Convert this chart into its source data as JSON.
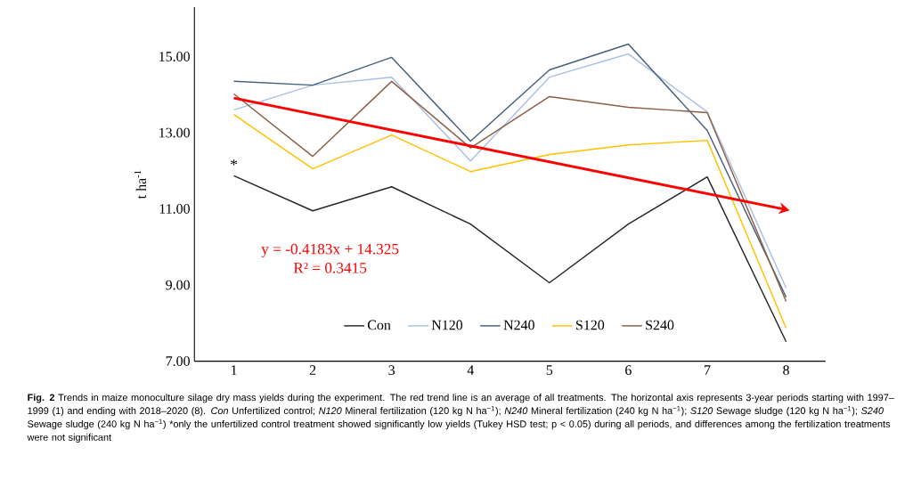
{
  "chart_data": {
    "type": "line",
    "x": [
      1,
      2,
      3,
      4,
      5,
      6,
      7,
      8
    ],
    "ylabel": "t ha$^{-1}$",
    "xlim": [
      0.5,
      8.5
    ],
    "xticks": [
      1,
      2,
      3,
      4,
      5,
      6,
      7,
      8
    ],
    "ylim": [
      7,
      16.3
    ],
    "yticks": [
      {
        "value": 7,
        "label": "7.00"
      },
      {
        "value": 9,
        "label": "9.00"
      },
      {
        "value": 11,
        "label": "11.00"
      },
      {
        "value": 13,
        "label": "13.00"
      },
      {
        "value": 15,
        "label": "15.00"
      }
    ],
    "series": [
      {
        "name": "Con",
        "color": "#262626",
        "values": [
          11.87,
          10.95,
          11.58,
          10.6,
          9.06,
          10.6,
          11.84,
          7.51
        ]
      },
      {
        "name": "N120",
        "color": "#a9c0e6",
        "values": [
          13.6,
          14.25,
          14.46,
          12.26,
          14.46,
          15.07,
          13.55,
          8.92
        ]
      },
      {
        "name": "N240",
        "color": "#44607f",
        "values": [
          14.35,
          14.25,
          14.98,
          12.78,
          14.65,
          15.33,
          13.06,
          8.68
        ]
      },
      {
        "name": "S120",
        "color": "#ffc000",
        "values": [
          13.48,
          12.05,
          12.94,
          11.98,
          12.43,
          12.68,
          12.8,
          7.87
        ]
      },
      {
        "name": "S240",
        "color": "#8c5f45",
        "values": [
          14.02,
          12.38,
          14.35,
          12.6,
          13.95,
          13.67,
          13.53,
          8.57
        ]
      },
      {
        "type": "line",
        "color": "#ff0000",
        "x": [
          1,
          8
        ],
        "values": [
          13.91,
          10.98
        ]
      }
    ],
    "annotations": [
      "*",
      "y = -0.4183x + 14.325",
      "R² = 0.3415",
      "**Fig. 2** Trends in maize monoculture silage dry mass yields during the experiment. The red trend line is an average of all treatments. The horizontal axis represents 3-year periods starting with 1997–1999 (1) and ending with 2018–2020 (8). *Con* Unfertilized control; *N120* Mineral fertilization (120 kg N ha$^{−1}$); *N240* Mineral fertilization (240 kg N ha$^{−1}$); *S120* Sewage sludge (120 kg N ha$^{−1}$); *S240* Sewage sludge (240 kg N ha$^{−1}$) *only the unfertilized control treatment showed significantly low yields (Tukey HSD test; p < 0.05) during all periods, and differences among the fertilization treatments were not significant"
    ],
    "legend": "bottom",
    "grid": false
  }
}
